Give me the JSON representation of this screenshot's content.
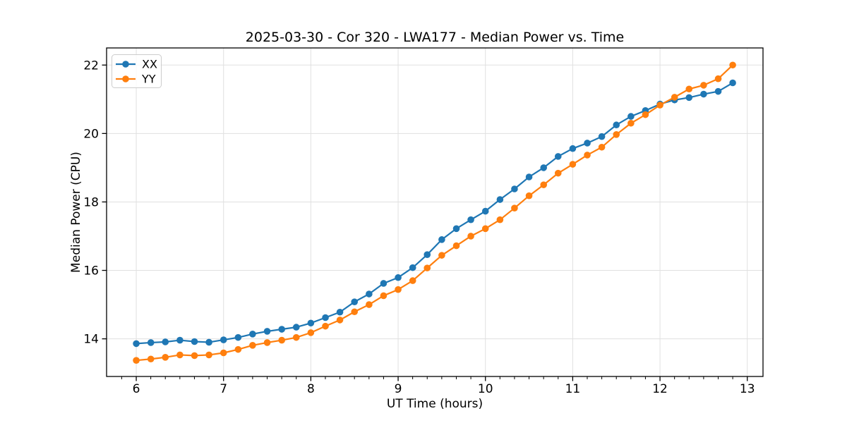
{
  "figure": {
    "background": "#ffffff",
    "grid_color": "#e0e0e0",
    "spine_color": "#000000"
  },
  "chart_data": {
    "type": "line",
    "title": "2025-03-30 - Cor 320 - LWA177 - Median Power vs. Time",
    "xlabel": "UT Time (hours)",
    "ylabel": "Median Power (CPU)",
    "xlim": [
      5.66,
      13.18
    ],
    "ylim": [
      12.9,
      22.5
    ],
    "x_major_ticks": [
      6,
      7,
      8,
      9,
      10,
      11,
      12,
      13
    ],
    "x_minor_tick_step": 0.16667,
    "x_minor_tick_start": 5.833,
    "x_minor_tick_end": 13.0,
    "y_major_ticks": [
      14,
      16,
      18,
      20,
      22
    ],
    "grid": true,
    "legend_position": "upper left",
    "marker": "circle",
    "x": [
      6.0,
      6.167,
      6.333,
      6.5,
      6.667,
      6.833,
      7.0,
      7.167,
      7.333,
      7.5,
      7.667,
      7.833,
      8.0,
      8.167,
      8.333,
      8.5,
      8.667,
      8.833,
      9.0,
      9.167,
      9.333,
      9.5,
      9.667,
      9.833,
      10.0,
      10.167,
      10.333,
      10.5,
      10.667,
      10.833,
      11.0,
      11.167,
      11.333,
      11.5,
      11.667,
      11.833,
      12.0,
      12.167,
      12.333,
      12.5,
      12.667,
      12.833
    ],
    "series": [
      {
        "name": "XX",
        "color": "#1f77b4",
        "values": [
          13.86,
          13.89,
          13.91,
          13.96,
          13.92,
          13.9,
          13.97,
          14.04,
          14.14,
          14.22,
          14.28,
          14.34,
          14.46,
          14.62,
          14.78,
          15.08,
          15.31,
          15.62,
          15.79,
          16.08,
          16.46,
          16.9,
          17.22,
          17.48,
          17.73,
          18.07,
          18.38,
          18.73,
          19.0,
          19.33,
          19.56,
          19.72,
          19.91,
          20.25,
          20.5,
          20.67,
          20.86,
          20.98,
          21.05,
          21.15,
          21.23,
          21.48
        ]
      },
      {
        "name": "YY",
        "color": "#ff7f0e",
        "values": [
          13.37,
          13.41,
          13.46,
          13.53,
          13.51,
          13.53,
          13.59,
          13.69,
          13.81,
          13.89,
          13.96,
          14.04,
          14.18,
          14.37,
          14.55,
          14.79,
          15.0,
          15.26,
          15.44,
          15.7,
          16.07,
          16.44,
          16.72,
          17.0,
          17.22,
          17.48,
          17.82,
          18.18,
          18.5,
          18.84,
          19.1,
          19.37,
          19.6,
          19.97,
          20.3,
          20.55,
          20.83,
          21.06,
          21.3,
          21.41,
          21.6,
          22.0
        ]
      }
    ]
  }
}
